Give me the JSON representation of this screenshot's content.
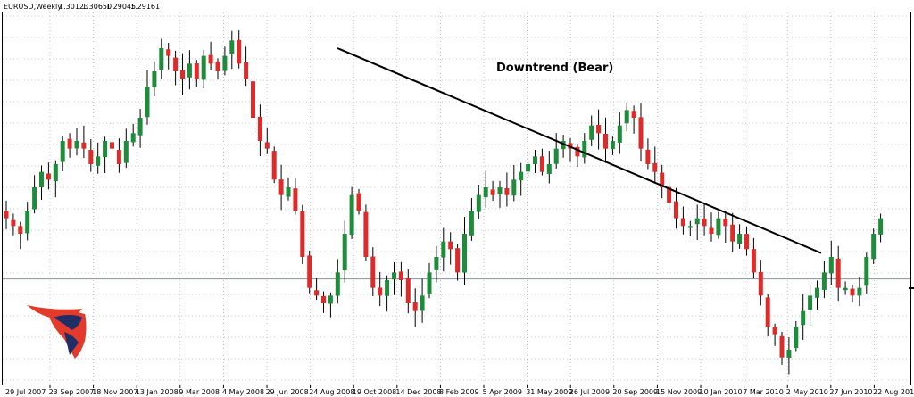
{
  "chart_data": {
    "type": "candlestick",
    "title": "EURUSD,Weekly",
    "ohlc_readout": [
      "1.30123",
      "1.30650",
      "1.29045",
      "1.29161"
    ],
    "annotation": "Downtrend (Bear)",
    "x_tick_labels": [
      "29 Jul 2007",
      "23 Sep 2007",
      "18 Nov 2007",
      "13 Jan 2008",
      "9 Mar 2008",
      "4 May 2008",
      "29 Jun 2008",
      "24 Aug 2008",
      "19 Oct 2008",
      "14 Dec 2008",
      "8 Feb 2009",
      "5 Apr 2009",
      "31 May 2009",
      "26 Jul 2009",
      "20 Sep 2009",
      "15 Nov 2009",
      "10 Jan 2010",
      "7 Mar 2010",
      "2 May 2010",
      "27 Jun 2010",
      "22 Aug 2010"
    ],
    "close_path": [
      1.37,
      1.36,
      1.35,
      1.38,
      1.41,
      1.43,
      1.42,
      1.44,
      1.47,
      1.46,
      1.47,
      1.46,
      1.44,
      1.45,
      1.47,
      1.46,
      1.44,
      1.47,
      1.48,
      1.5,
      1.54,
      1.56,
      1.59,
      1.58,
      1.56,
      1.55,
      1.57,
      1.55,
      1.58,
      1.57,
      1.56,
      1.58,
      1.6,
      1.57,
      1.55,
      1.5,
      1.47,
      1.46,
      1.42,
      1.4,
      1.41,
      1.38,
      1.32,
      1.28,
      1.27,
      1.26,
      1.27,
      1.3,
      1.35,
      1.4,
      1.38,
      1.32,
      1.28,
      1.27,
      1.29,
      1.3,
      1.29,
      1.26,
      1.25,
      1.27,
      1.3,
      1.32,
      1.34,
      1.33,
      1.3,
      1.35,
      1.38,
      1.4,
      1.41,
      1.4,
      1.41,
      1.4,
      1.42,
      1.43,
      1.44,
      1.45,
      1.43,
      1.44,
      1.46,
      1.47,
      1.46,
      1.45,
      1.47,
      1.49,
      1.48,
      1.46,
      1.47,
      1.49,
      1.51,
      1.5,
      1.46,
      1.44,
      1.43,
      1.41,
      1.39,
      1.37,
      1.36,
      1.36,
      1.37,
      1.36,
      1.35,
      1.37,
      1.36,
      1.34,
      1.35,
      1.33,
      1.3,
      1.27,
      1.23,
      1.22,
      1.19,
      1.2,
      1.23,
      1.25,
      1.27,
      1.28,
      1.3,
      1.32,
      1.28,
      1.28,
      1.27,
      1.28,
      1.32,
      1.35,
      1.37
    ],
    "trendline": {
      "from": {
        "index": 57,
        "price": 1.59
      },
      "to": {
        "index": 137,
        "price": 1.325
      }
    },
    "horizontal_line_price": 1.29161,
    "colors": {
      "bull": "#1e8c3a",
      "bear": "#e02a2a",
      "wick": "#000000",
      "grid": "#9aa0a6",
      "axis": "#000000",
      "line": "#000000"
    }
  }
}
